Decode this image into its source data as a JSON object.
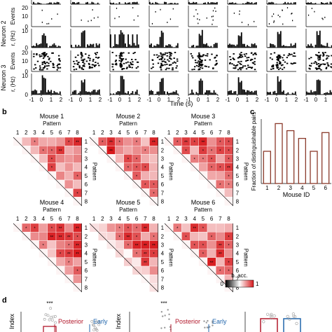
{
  "panel_a": {
    "neuron_labels": [
      "Neuron 2",
      "Neuron 3"
    ],
    "row_ylabels": [
      "Events",
      "r, (Hz)",
      "Events",
      "r, (Hz)"
    ],
    "row_ytop_ticks": [
      "20",
      "10",
      "20",
      "10"
    ],
    "row_ymid_ticks": [
      "10",
      "",
      "10",
      ""
    ],
    "row_ybottom_ticks": [
      "0",
      "0",
      "0",
      "0"
    ],
    "x_ticks": [
      "-1",
      "0",
      "1",
      "2"
    ],
    "xlabel": "Time (s)"
  },
  "panel_b": {
    "label": "b",
    "pattern_label": "Pattern",
    "pattern_numbers": [
      "1",
      "2",
      "3",
      "4",
      "5",
      "6",
      "7",
      "8"
    ],
    "mouse_titles": [
      "Mouse 1",
      "Mouse 2",
      "Mouse 3",
      "Mouse 4",
      "Mouse 5",
      "Mouse 6"
    ],
    "colorbar_label": "b. acc.",
    "colorbar_ticks": [
      "0",
      "1"
    ],
    "colors": {
      "low": "#ffffff",
      "high": "#d7191c"
    }
  },
  "panel_c": {
    "label": "c",
    "ylabel": "Fraction of distinguishable pairs",
    "xlabel": "Mouse ID",
    "bar_color": "#8b3a2b",
    "chart_data": {
      "type": "bar",
      "categories": [
        "1",
        "2",
        "3",
        "4",
        "5",
        "6"
      ],
      "values": [
        0.5,
        0.93,
        0.82,
        0.7,
        0.5,
        0.79
      ],
      "ylim": [
        0,
        1
      ],
      "xlabel": "Mouse ID",
      "ylabel": "Fraction of distinguishable pairs"
    }
  },
  "panel_d": {
    "label": "d",
    "ylabel": "Index",
    "sig_labels": [
      "***",
      "***"
    ],
    "posterior_label": "Posterior",
    "early_label": "Early",
    "posterior_color": "#b2182b",
    "early_color": "#2166ac"
  }
}
